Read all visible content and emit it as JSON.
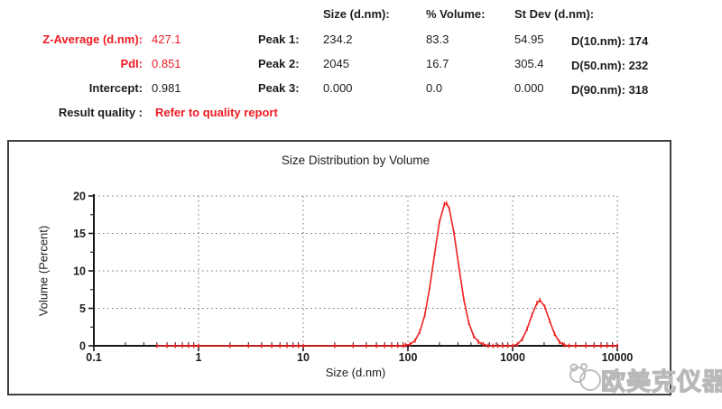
{
  "colors": {
    "accent_red": "#ed1c24",
    "curve_red": "#ee2222",
    "watermark_gray": "#b9b9b9"
  },
  "summary": {
    "rows": [
      {
        "label": "Z-Average (d.nm):",
        "value": "427.1"
      },
      {
        "label": "PdI:",
        "value": "0.851"
      },
      {
        "label": "Intercept:",
        "value": "0.981"
      }
    ],
    "result_quality_label": "Result quality :",
    "result_quality_value": "Refer to quality report"
  },
  "peaks_table": {
    "headers": {
      "size": "Size (d.nm):",
      "volume": "% Volume:",
      "stdev": "St Dev (d.nm):"
    },
    "rows": [
      {
        "label": "Peak 1:",
        "size": "234.2",
        "volume": "83.3",
        "stdev": "54.95"
      },
      {
        "label": "Peak 2:",
        "size": "2045",
        "volume": "16.7",
        "stdev": "305.4"
      },
      {
        "label": "Peak 3:",
        "size": "0.000",
        "volume": "0.0",
        "stdev": "0.000"
      }
    ]
  },
  "d_values": [
    {
      "label": "D(10.nm):",
      "value": "174"
    },
    {
      "label": "D(50.nm):",
      "value": "232"
    },
    {
      "label": "D(90.nm):",
      "value": "318"
    }
  ],
  "chart_data": {
    "type": "line",
    "title": "Size Distribution by Volume",
    "xlabel": "Size (d.nm)",
    "ylabel": "Volume (Percent)",
    "x_scale": "log",
    "xlim": [
      0.1,
      10000
    ],
    "ylim": [
      0,
      20
    ],
    "x_ticks": [
      0.1,
      1,
      10,
      100,
      1000,
      10000
    ],
    "y_ticks": [
      0,
      5,
      10,
      15,
      20
    ],
    "grid": "dotted",
    "legend": "none",
    "line_color": "#ee2222",
    "series": [
      {
        "points": [
          [
            0.4,
            0
          ],
          [
            0.5,
            0
          ],
          [
            0.6,
            0
          ],
          [
            0.7,
            0
          ],
          [
            0.8,
            0
          ],
          [
            0.9,
            0
          ],
          [
            1,
            0
          ],
          [
            2,
            0
          ],
          [
            3,
            0
          ],
          [
            4,
            0
          ],
          [
            5,
            0
          ],
          [
            6,
            0
          ],
          [
            7,
            0
          ],
          [
            8,
            0
          ],
          [
            9,
            0
          ],
          [
            10,
            0
          ],
          [
            20,
            0
          ],
          [
            30,
            0
          ],
          [
            40,
            0
          ],
          [
            50,
            0
          ],
          [
            60,
            0
          ],
          [
            70,
            0
          ],
          [
            80,
            0
          ],
          [
            90,
            0
          ],
          [
            95,
            0.1
          ],
          [
            105,
            0.2
          ],
          [
            117,
            0.7
          ],
          [
            130,
            1.9
          ],
          [
            145,
            4.1
          ],
          [
            162,
            7.9
          ],
          [
            180,
            12.3
          ],
          [
            200,
            16.5
          ],
          [
            223,
            18.9
          ],
          [
            234,
            19.0
          ],
          [
            248,
            18.3
          ],
          [
            276,
            15.0
          ],
          [
            307,
            10.5
          ],
          [
            342,
            6.2
          ],
          [
            381,
            3.1
          ],
          [
            424,
            1.3
          ],
          [
            472,
            0.5
          ],
          [
            525,
            0.2
          ],
          [
            584,
            0
          ],
          [
            650,
            0
          ],
          [
            724,
            0
          ],
          [
            806,
            0
          ],
          [
            897,
            0
          ],
          [
            1000,
            0
          ],
          [
            1110,
            0.2
          ],
          [
            1240,
            0.9
          ],
          [
            1380,
            2.3
          ],
          [
            1530,
            4.1
          ],
          [
            1710,
            5.7
          ],
          [
            1820,
            6.1
          ],
          [
            2030,
            5.2
          ],
          [
            2260,
            3.3
          ],
          [
            2510,
            1.6
          ],
          [
            2800,
            0.5
          ],
          [
            3110,
            0.1
          ],
          [
            3460,
            0
          ],
          [
            4000,
            0
          ],
          [
            5000,
            0
          ],
          [
            6000,
            0
          ],
          [
            7000,
            0
          ],
          [
            8000,
            0
          ],
          [
            9000,
            0
          ],
          [
            10000,
            0
          ]
        ]
      }
    ]
  },
  "watermark": {
    "text": "欧美克仪器"
  }
}
